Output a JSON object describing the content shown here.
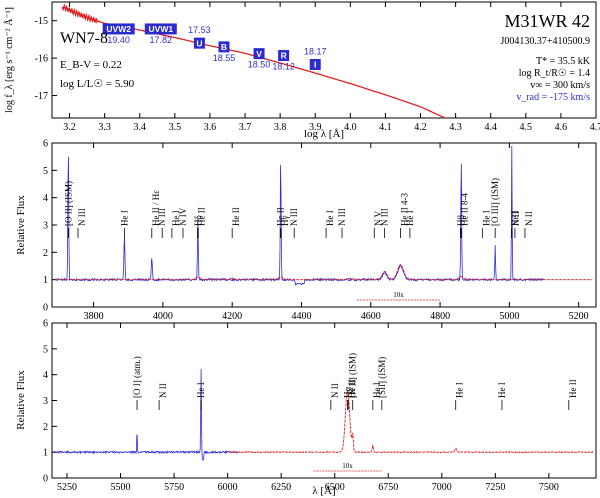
{
  "chart_data": [
    {
      "type": "line",
      "panel": "sed",
      "xlabel": "log λ [Å]",
      "ylabel": "log f_λ [erg s⁻¹ cm⁻² Å⁻¹]",
      "xlim": [
        3.15,
        4.7
      ],
      "ylim": [
        -17.6,
        -14.5
      ],
      "xticks": [
        "3.2",
        "3.3",
        "3.4",
        "3.5",
        "3.6",
        "3.7",
        "3.8",
        "3.9",
        "4.0",
        "4.1",
        "4.2",
        "4.3",
        "4.4",
        "4.5",
        "4.6",
        "4.7"
      ],
      "yticks": [
        "-15",
        "-16",
        "-17"
      ],
      "object": "M31WR 42",
      "coords": "J004130.37+410500.9",
      "spectral_type": "WN7-8",
      "ebv": "E_B-V = 0.22",
      "logL": "log L/L☉ = 5.90",
      "params": [
        "T* = 35.5 kK",
        "log R_t/R☉ = 1.4",
        "v∞ = 300 km/s"
      ],
      "vrad": "v_rad = -175 km/s",
      "model_sed": {
        "x": [
          3.18,
          3.22,
          3.26,
          3.3,
          3.35,
          3.4,
          3.5,
          3.6,
          3.7,
          3.8,
          3.9,
          4.0,
          4.1,
          4.2,
          4.27
        ],
        "y": [
          -14.63,
          -14.8,
          -14.95,
          -15.07,
          -15.15,
          -15.25,
          -15.45,
          -15.67,
          -15.87,
          -16.13,
          -16.4,
          -16.68,
          -16.98,
          -17.3,
          -17.6
        ]
      },
      "photometry": [
        {
          "label": "UVW2",
          "mag": "19.40",
          "x": 3.34,
          "y": -15.22
        },
        {
          "label": "UVW1",
          "mag": "17.82",
          "x": 3.46,
          "y": -15.22
        },
        {
          "label": "U",
          "mag": "17.53",
          "x": 3.57,
          "y": -15.6
        },
        {
          "label": "B",
          "mag": "18.55",
          "x": 3.64,
          "y": -15.7
        },
        {
          "label": "V",
          "mag": "18.50",
          "x": 3.74,
          "y": -15.88
        },
        {
          "label": "R",
          "mag": "18.12",
          "x": 3.81,
          "y": -15.93
        },
        {
          "label": "I",
          "mag": "18.17",
          "x": 3.9,
          "y": -16.17
        }
      ]
    },
    {
      "type": "line",
      "panel": "spectrum-blue",
      "ylabel": "Relative Flux",
      "xlim": [
        3680,
        5250
      ],
      "ylim": [
        0,
        6
      ],
      "xticks": [
        "3800",
        "4000",
        "4200",
        "4400",
        "4600",
        "4800",
        "5000",
        "5200"
      ],
      "yticks": [
        "0",
        "1",
        "2",
        "3",
        "4",
        "5",
        "6"
      ],
      "scale_label": "10x",
      "lines": [
        {
          "label": "[O II] (ISM)",
          "x": 3727
        },
        {
          "label": "N III",
          "x": 3755
        },
        {
          "label": "He I",
          "x": 3889
        },
        {
          "label": "He II / Hε",
          "x": 3968
        },
        {
          "label": "N III",
          "x": 3998
        },
        {
          "label": "He I",
          "x": 4026
        },
        {
          "label": "N IV",
          "x": 4058
        },
        {
          "label": "He II",
          "x": 4100
        },
        {
          "label": "Hδ",
          "x": 4102
        },
        {
          "label": "He II",
          "x": 4200
        },
        {
          "label": "He II",
          "x": 4340
        },
        {
          "label": "Hγ",
          "x": 4341
        },
        {
          "label": "N III",
          "x": 4379
        },
        {
          "label": "He I",
          "x": 4471
        },
        {
          "label": "N III",
          "x": 4517
        },
        {
          "label": "N V",
          "x": 4610
        },
        {
          "label": "N III",
          "x": 4640
        },
        {
          "label": "He II 4-3",
          "x": 4686
        },
        {
          "label": "He I",
          "x": 4713
        },
        {
          "label": "He II 8-4",
          "x": 4859
        },
        {
          "label": "Hβ",
          "x": 4861
        },
        {
          "label": "He I",
          "x": 4922
        },
        {
          "label": "[O III] (ISM)",
          "x": 4959
        },
        {
          "label": "N II",
          "x": 5007
        },
        {
          "label": "He I",
          "x": 5016
        },
        {
          "label": "N II",
          "x": 5045
        }
      ]
    },
    {
      "type": "line",
      "panel": "spectrum-red",
      "xlabel": "λ [Å]",
      "ylabel": "Relative Flux",
      "xlim": [
        5180,
        7720
      ],
      "ylim": [
        0,
        6
      ],
      "xticks": [
        "5250",
        "5500",
        "5750",
        "6000",
        "6250",
        "6500",
        "6750",
        "7000",
        "7250",
        "7500"
      ],
      "yticks": [
        "0",
        "1",
        "2",
        "3",
        "4",
        "5",
        "6"
      ],
      "scale_label": "10x",
      "lines": [
        {
          "label": "[O I] (atm.)",
          "x": 5577
        },
        {
          "label": "N II",
          "x": 5680
        },
        {
          "label": "He I",
          "x": 5876
        },
        {
          "label": "N II",
          "x": 6482
        },
        {
          "label": "Hα",
          "x": 6560
        },
        {
          "label": "He II",
          "x": 6563
        },
        {
          "label": "[N II] (ISM)",
          "x": 6584
        },
        {
          "label": "He I",
          "x": 6678
        },
        {
          "label": "[SII] (ISM)",
          "x": 6720
        },
        {
          "label": "He I",
          "x": 7065
        },
        {
          "label": "He I",
          "x": 7281
        },
        {
          "label": "He II",
          "x": 7593
        }
      ]
    }
  ],
  "colors": {
    "model": "#e02020",
    "observed": "#2f2fd6",
    "phot": "#2b2bd0"
  }
}
